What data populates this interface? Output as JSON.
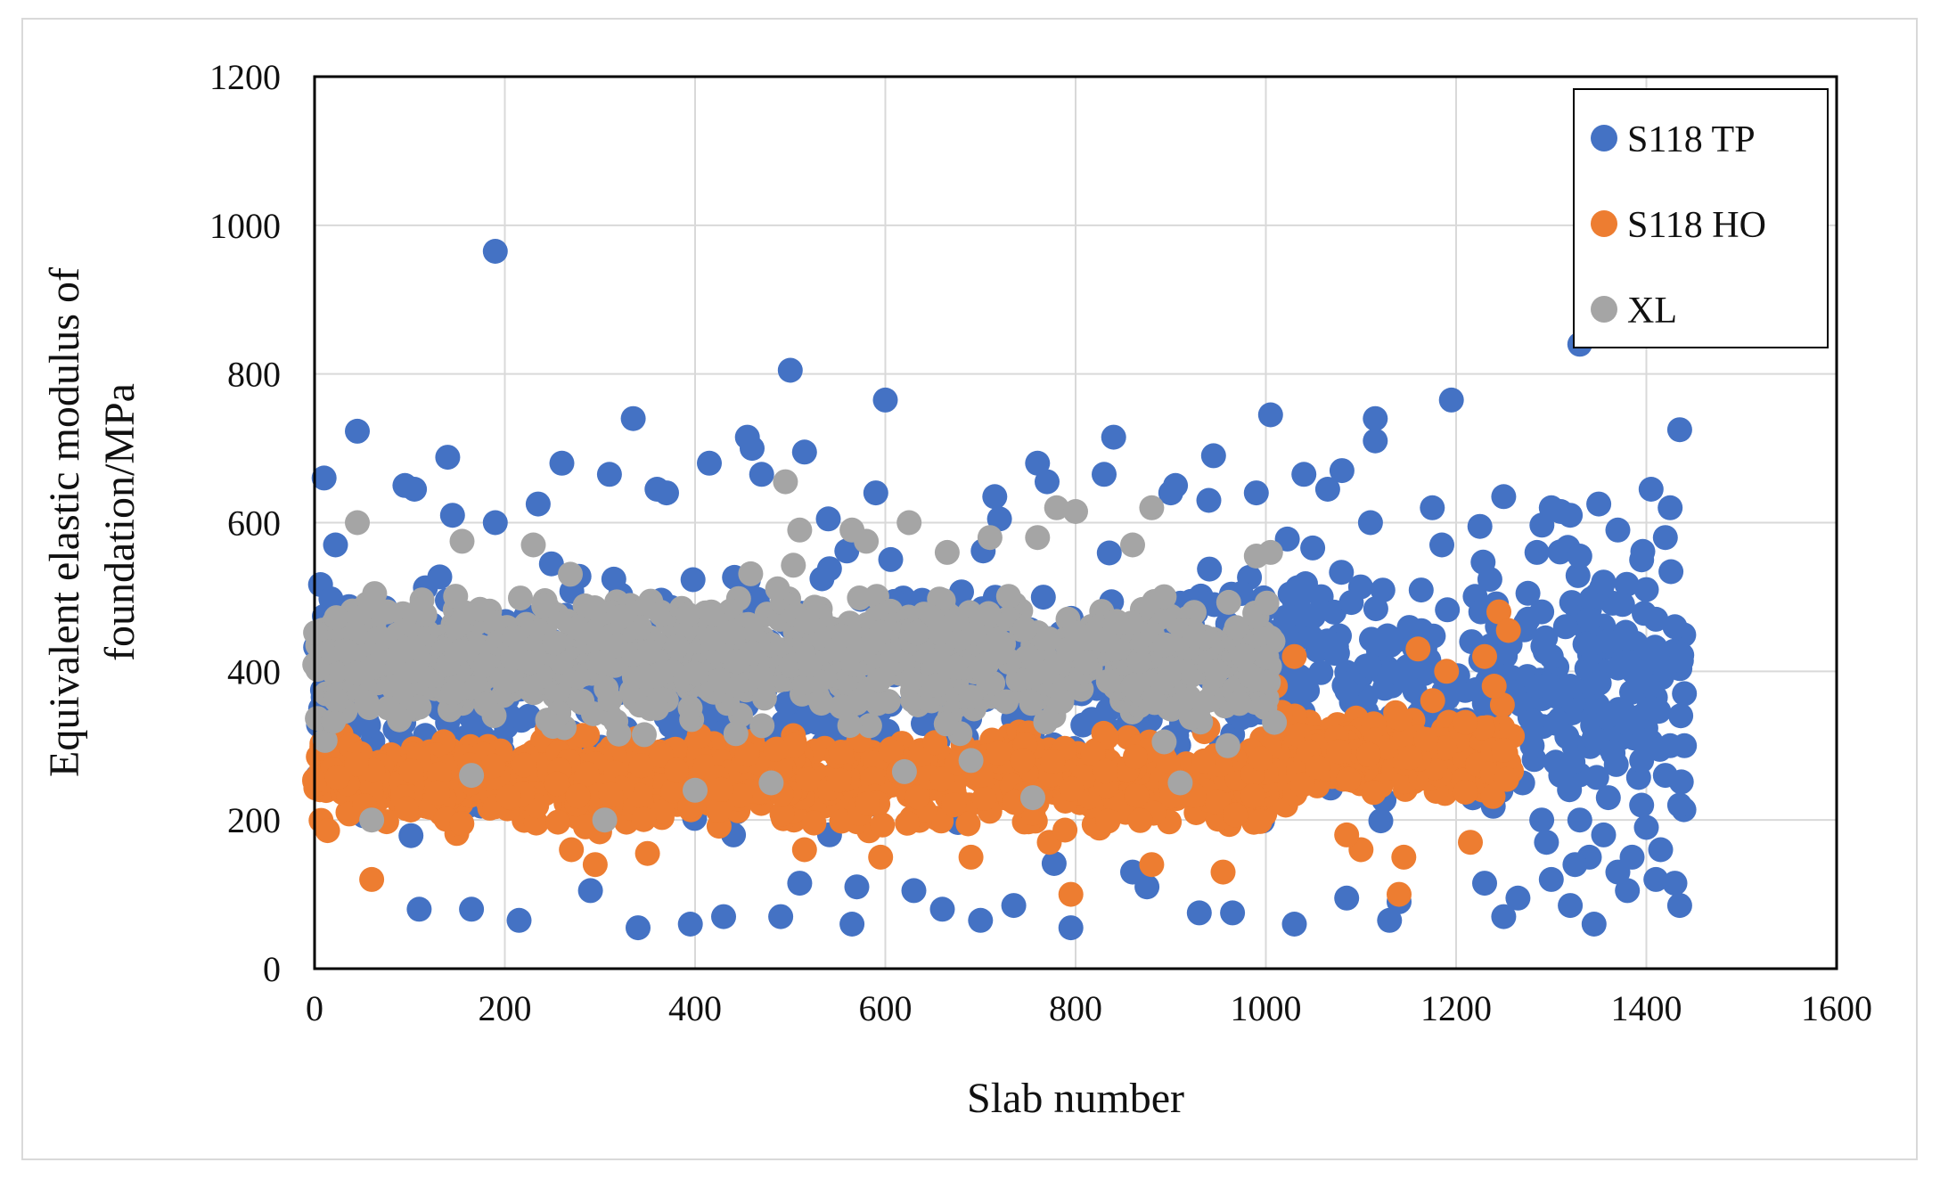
{
  "chart_data": {
    "type": "scatter",
    "title": "",
    "xlabel": "Slab number",
    "ylabel_lines": [
      "Equivalent elastic modulus of",
      "foundation/MPa"
    ],
    "xlim": [
      0,
      1600
    ],
    "ylim": [
      0,
      1200
    ],
    "x_ticks": [
      0,
      200,
      400,
      600,
      800,
      1000,
      1200,
      1400,
      1600
    ],
    "y_ticks": [
      0,
      200,
      400,
      600,
      800,
      1000,
      1200
    ],
    "x_tick_labels": [
      "0",
      "200",
      "400",
      "600",
      "800",
      "1000",
      "1200",
      "1400",
      "1600"
    ],
    "y_tick_labels": [
      "0",
      "200",
      "400",
      "600",
      "800",
      "1000",
      "1200"
    ],
    "grid": true,
    "legend_position": "top-right",
    "series": [
      {
        "name": "S118 TP",
        "color": "#4472C4",
        "x_range": [
          0,
          1440
        ],
        "points": [
          [
            10,
            660
          ],
          [
            22,
            570
          ],
          [
            45,
            723
          ],
          [
            95,
            650
          ],
          [
            105,
            645
          ],
          [
            110,
            80
          ],
          [
            140,
            688
          ],
          [
            145,
            610
          ],
          [
            165,
            80
          ],
          [
            190,
            965
          ],
          [
            190,
            600
          ],
          [
            215,
            65
          ],
          [
            235,
            625
          ],
          [
            260,
            680
          ],
          [
            290,
            105
          ],
          [
            310,
            665
          ],
          [
            335,
            740
          ],
          [
            340,
            55
          ],
          [
            360,
            645
          ],
          [
            370,
            640
          ],
          [
            395,
            60
          ],
          [
            415,
            680
          ],
          [
            430,
            70
          ],
          [
            455,
            715
          ],
          [
            460,
            700
          ],
          [
            470,
            665
          ],
          [
            490,
            70
          ],
          [
            500,
            805
          ],
          [
            510,
            115
          ],
          [
            515,
            695
          ],
          [
            540,
            605
          ],
          [
            565,
            60
          ],
          [
            570,
            110
          ],
          [
            590,
            640
          ],
          [
            600,
            765
          ],
          [
            630,
            105
          ],
          [
            660,
            80
          ],
          [
            700,
            65
          ],
          [
            715,
            635
          ],
          [
            720,
            605
          ],
          [
            735,
            85
          ],
          [
            760,
            680
          ],
          [
            770,
            655
          ],
          [
            795,
            55
          ],
          [
            830,
            665
          ],
          [
            840,
            715
          ],
          [
            860,
            130
          ],
          [
            875,
            110
          ],
          [
            900,
            640
          ],
          [
            905,
            650
          ],
          [
            930,
            75
          ],
          [
            940,
            630
          ],
          [
            945,
            690
          ],
          [
            965,
            75
          ],
          [
            990,
            640
          ],
          [
            1005,
            745
          ],
          [
            1030,
            60
          ],
          [
            1040,
            665
          ],
          [
            1065,
            645
          ],
          [
            1080,
            670
          ],
          [
            1085,
            95
          ],
          [
            1110,
            600
          ],
          [
            1115,
            740
          ],
          [
            1115,
            710
          ],
          [
            1130,
            65
          ],
          [
            1140,
            90
          ],
          [
            1175,
            620
          ],
          [
            1185,
            570
          ],
          [
            1195,
            765
          ],
          [
            1225,
            595
          ],
          [
            1230,
            115
          ],
          [
            1250,
            635
          ],
          [
            1250,
            70
          ],
          [
            1265,
            95
          ],
          [
            1285,
            560
          ],
          [
            1300,
            620
          ],
          [
            1310,
            615
          ],
          [
            1320,
            610
          ],
          [
            1330,
            840
          ],
          [
            1330,
            555
          ],
          [
            1345,
            60
          ],
          [
            1350,
            625
          ],
          [
            1370,
            590
          ],
          [
            1380,
            105
          ],
          [
            1395,
            550
          ],
          [
            1400,
            510
          ],
          [
            1405,
            645
          ],
          [
            1410,
            120
          ],
          [
            1420,
            580
          ],
          [
            1425,
            620
          ],
          [
            1430,
            115
          ],
          [
            1435,
            725
          ],
          [
            1435,
            85
          ],
          [
            1440,
            370
          ],
          [
            1440,
            300
          ],
          [
            1300,
            120
          ],
          [
            1320,
            85
          ],
          [
            1290,
            200
          ],
          [
            1310,
            260
          ],
          [
            1340,
            150
          ],
          [
            1360,
            230
          ],
          [
            1380,
            330
          ],
          [
            1400,
            190
          ],
          [
            1420,
            260
          ],
          [
            1280,
            300
          ],
          [
            1300,
            420
          ],
          [
            1320,
            380
          ],
          [
            1340,
            470
          ],
          [
            1360,
            440
          ],
          [
            1375,
            490
          ],
          [
            1390,
            400
          ],
          [
            1410,
            470
          ],
          [
            1430,
            460
          ],
          [
            1295,
            170
          ],
          [
            1330,
            200
          ],
          [
            1355,
            180
          ],
          [
            1385,
            150
          ],
          [
            1415,
            160
          ],
          [
            1270,
            250
          ],
          [
            1305,
            330
          ],
          [
            1345,
            310
          ],
          [
            1365,
            290
          ],
          [
            1395,
            280
          ],
          [
            1425,
            300
          ],
          [
            1285,
            380
          ],
          [
            1315,
            460
          ],
          [
            1355,
            520
          ],
          [
            1405,
            350
          ],
          [
            1290,
            480
          ],
          [
            1325,
            140
          ],
          [
            1370,
            130
          ],
          [
            1395,
            220
          ],
          [
            1435,
            220
          ]
        ]
      },
      {
        "name": "S118 HO",
        "color": "#ED7D31",
        "x_range": [
          0,
          1260
        ],
        "points": [
          [
            60,
            120
          ],
          [
            295,
            140
          ],
          [
            350,
            155
          ],
          [
            515,
            160
          ],
          [
            595,
            150
          ],
          [
            795,
            100
          ],
          [
            955,
            130
          ],
          [
            1140,
            100
          ],
          [
            1145,
            150
          ],
          [
            1100,
            160
          ],
          [
            1245,
            480
          ],
          [
            1255,
            455
          ],
          [
            1240,
            380
          ],
          [
            1230,
            420
          ],
          [
            1215,
            170
          ],
          [
            880,
            140
          ],
          [
            270,
            160
          ],
          [
            690,
            150
          ],
          [
            1030,
            420
          ],
          [
            1010,
            380
          ],
          [
            1160,
            430
          ],
          [
            1190,
            400
          ],
          [
            1085,
            180
          ]
        ]
      },
      {
        "name": "XL",
        "color": "#A5A5A5",
        "x_range": [
          0,
          1010
        ],
        "points": [
          [
            45,
            600
          ],
          [
            60,
            200
          ],
          [
            155,
            575
          ],
          [
            230,
            570
          ],
          [
            305,
            200
          ],
          [
            400,
            240
          ],
          [
            480,
            250
          ],
          [
            495,
            655
          ],
          [
            510,
            590
          ],
          [
            565,
            590
          ],
          [
            580,
            575
          ],
          [
            620,
            265
          ],
          [
            625,
            600
          ],
          [
            665,
            560
          ],
          [
            690,
            280
          ],
          [
            710,
            580
          ],
          [
            755,
            230
          ],
          [
            760,
            580
          ],
          [
            780,
            620
          ],
          [
            800,
            615
          ],
          [
            860,
            570
          ],
          [
            880,
            620
          ],
          [
            910,
            250
          ],
          [
            960,
            300
          ],
          [
            990,
            555
          ],
          [
            1005,
            560
          ],
          [
            165,
            260
          ]
        ]
      }
    ]
  }
}
